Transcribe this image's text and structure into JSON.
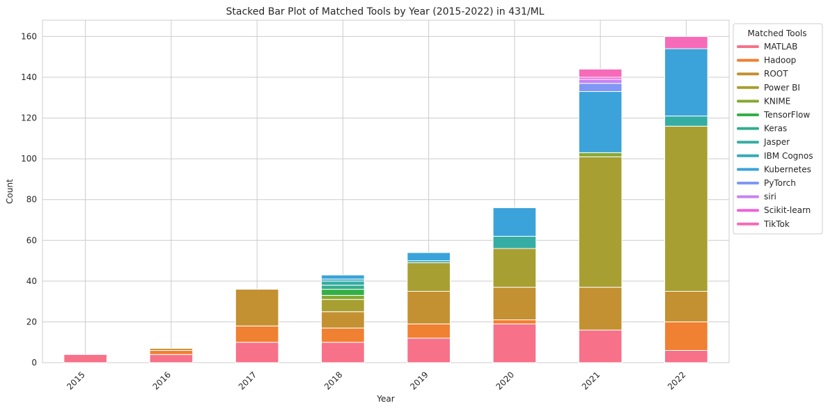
{
  "chart_data": {
    "type": "bar",
    "stacked": true,
    "title": "Stacked Bar Plot of Matched Tools by Year (2015-2022) in 431/ML",
    "xlabel": "Year",
    "ylabel": "Count",
    "ylim": [
      0,
      168
    ],
    "yticks": [
      0,
      20,
      40,
      60,
      80,
      100,
      120,
      140,
      160
    ],
    "grid": true,
    "legend_title": "Matched Tools",
    "legend_position": "outside-right",
    "categories": [
      "2015",
      "2016",
      "2017",
      "2018",
      "2019",
      "2020",
      "2021",
      "2022"
    ],
    "series": [
      {
        "name": "MATLAB",
        "color": "#f77189",
        "values": [
          4,
          4,
          10,
          10,
          12,
          19,
          16,
          6
        ]
      },
      {
        "name": "Hadoop",
        "color": "#f08032",
        "values": [
          0,
          2,
          8,
          7,
          7,
          2,
          0,
          14
        ]
      },
      {
        "name": "ROOT",
        "color": "#c39032",
        "values": [
          0,
          1,
          18,
          8,
          16,
          16,
          21,
          15
        ]
      },
      {
        "name": "Power BI",
        "color": "#a79f31",
        "values": [
          0,
          0,
          0,
          6,
          14,
          19,
          64,
          81
        ]
      },
      {
        "name": "KNIME",
        "color": "#86a831",
        "values": [
          0,
          0,
          0,
          2,
          0,
          0,
          2,
          0
        ]
      },
      {
        "name": "TensorFlow",
        "color": "#33b045",
        "values": [
          0,
          0,
          0,
          3,
          0,
          0,
          0,
          0
        ]
      },
      {
        "name": "Keras",
        "color": "#35ac8f",
        "values": [
          0,
          0,
          0,
          2,
          0,
          0,
          0,
          0
        ]
      },
      {
        "name": "Jasper",
        "color": "#36ada4",
        "values": [
          0,
          0,
          0,
          2,
          0,
          6,
          0,
          5
        ]
      },
      {
        "name": "IBM Cognos",
        "color": "#38aab8",
        "values": [
          0,
          0,
          0,
          1,
          1,
          0,
          0,
          0
        ]
      },
      {
        "name": "Kubernetes",
        "color": "#3ba3d9",
        "values": [
          0,
          0,
          0,
          2,
          4,
          14,
          30,
          33
        ]
      },
      {
        "name": "PyTorch",
        "color": "#8197f5",
        "values": [
          0,
          0,
          0,
          0,
          0,
          0,
          4,
          0
        ]
      },
      {
        "name": "siri",
        "color": "#c683f4",
        "values": [
          0,
          0,
          0,
          0,
          0,
          0,
          2,
          0
        ]
      },
      {
        "name": "Scikit-learn",
        "color": "#f061dd",
        "values": [
          0,
          0,
          0,
          0,
          0,
          0,
          1,
          0
        ]
      },
      {
        "name": "TikTok",
        "color": "#f66bb8",
        "values": [
          0,
          0,
          0,
          0,
          0,
          0,
          4,
          6
        ]
      }
    ]
  }
}
